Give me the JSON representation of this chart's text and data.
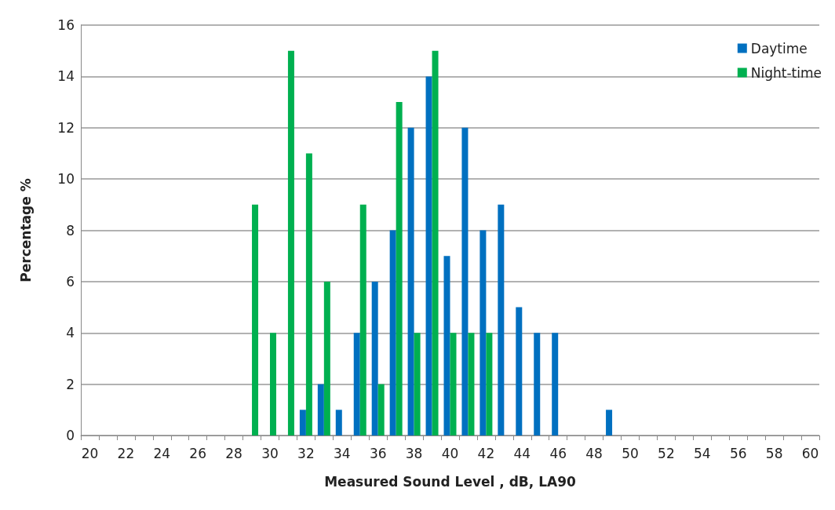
{
  "chart_data": {
    "type": "bar",
    "xlabel": "Measured Sound Level , dB, LA90",
    "ylabel": "Percentage %",
    "categories": [
      "20",
      null,
      "22",
      null,
      "24",
      null,
      "26",
      null,
      "28",
      null,
      "30",
      null,
      "32",
      null,
      "34",
      null,
      "36",
      null,
      "38",
      null,
      "40",
      null,
      "42",
      null,
      "44",
      null,
      "46",
      null,
      "48",
      null,
      "50",
      null,
      "52",
      null,
      "54",
      null,
      "56",
      null,
      "58",
      null,
      "60"
    ],
    "series": [
      {
        "name": "Daytime",
        "color": "#0070c0",
        "values": [
          0,
          0,
          0,
          0,
          0,
          0,
          0,
          0,
          0,
          0,
          0,
          0,
          1,
          2,
          1,
          4,
          6,
          8,
          12,
          14,
          7,
          12,
          8,
          9,
          5,
          4,
          4,
          0,
          0,
          1,
          0,
          0,
          0,
          0,
          0,
          0,
          0,
          0,
          0,
          0,
          0
        ]
      },
      {
        "name": "Night-time",
        "color": "#00b050",
        "values": [
          0,
          0,
          0,
          0,
          0,
          0,
          0,
          0,
          0,
          9,
          4,
          15,
          11,
          6,
          0,
          9,
          2,
          13,
          4,
          15,
          4,
          4,
          4,
          0,
          0,
          0,
          0,
          0,
          0,
          0,
          0,
          0,
          0,
          0,
          0,
          0,
          0,
          0,
          0,
          0,
          0
        ]
      }
    ],
    "ylim": [
      0,
      16
    ],
    "yticks": [
      0,
      2,
      4,
      6,
      8,
      10,
      12,
      14,
      16
    ],
    "grid": "y",
    "legend": "top right"
  }
}
